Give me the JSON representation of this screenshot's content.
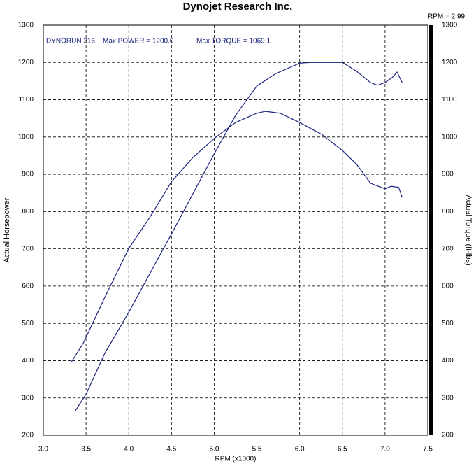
{
  "chart_data": {
    "type": "line",
    "title": "Dynojet Research Inc.",
    "corner_label": "RPM = 2.99",
    "annotations": [
      "DYNORUN 216",
      "Max POWER = 1200.0",
      "Max TORQUE = 1069.1"
    ],
    "x_label": "RPM (x1000)",
    "y_label": "Actual Horsepower",
    "y2_label": "Actual Torque (ft-lbs)",
    "xlim": [
      3,
      7.5
    ],
    "xticks": [
      {
        "value": 3,
        "label": "3.0"
      },
      3.5,
      {
        "value": 4,
        "label": "4.0"
      },
      4.5,
      {
        "value": 5,
        "label": "5.0"
      },
      5.5,
      {
        "value": 6,
        "label": "6.0"
      },
      6.5,
      {
        "value": 7,
        "label": "7.0"
      },
      7.5
    ],
    "ylim": [
      200,
      1300
    ],
    "yticks": [
      200,
      300,
      400,
      500,
      600,
      700,
      800,
      900,
      1000,
      1100,
      1200,
      1300
    ],
    "y2lim": [
      200,
      1300
    ],
    "y2ticks": [
      200,
      300,
      400,
      500,
      600,
      700,
      800,
      900,
      1000,
      1100,
      1200,
      1300
    ],
    "grid": true,
    "series": [
      {
        "color": "#1a237e",
        "x": [
          3.37,
          3.5,
          3.72,
          4.0,
          4.5,
          5.0,
          5.25,
          5.5,
          5.72,
          6.0,
          6.13,
          6.5,
          6.67,
          6.83,
          6.91,
          7.0,
          7.09,
          7.14,
          7.2
        ],
        "values": [
          264,
          310,
          420,
          530,
          740,
          955,
          1058,
          1137,
          1170,
          1198,
          1200,
          1200,
          1176,
          1146,
          1139,
          1146,
          1161,
          1174,
          1146
        ]
      },
      {
        "color": "#1a237e",
        "axis": "y2",
        "x": [
          3.33,
          3.47,
          3.72,
          4.0,
          4.25,
          4.5,
          4.75,
          5.0,
          5.25,
          5.5,
          5.6,
          5.77,
          6.0,
          6.26,
          6.5,
          6.67,
          6.83,
          7.0,
          7.07,
          7.16,
          7.2
        ],
        "values": [
          397,
          448,
          570,
          701,
          786,
          880,
          945,
          996,
          1039,
          1064,
          1069,
          1064,
          1039,
          1007,
          964,
          926,
          876,
          861,
          868,
          865,
          838
        ]
      }
    ]
  }
}
